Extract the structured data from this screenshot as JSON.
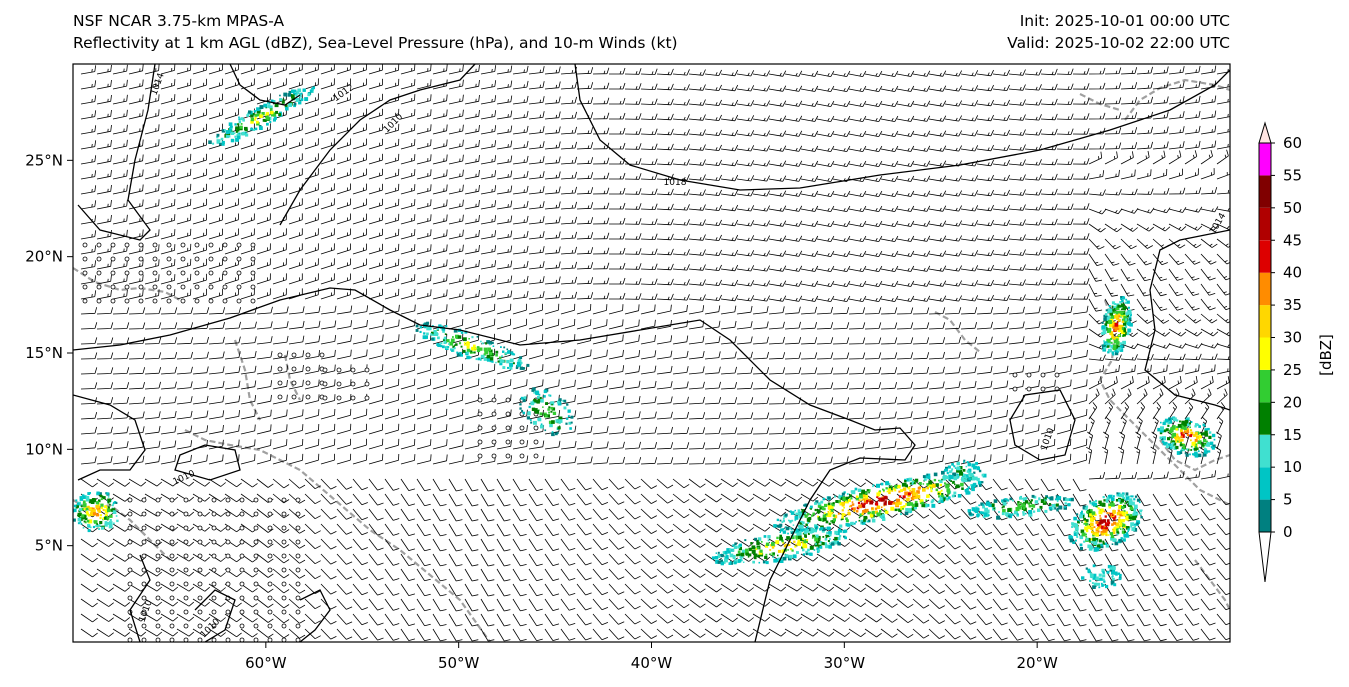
{
  "header": {
    "model": "NSF NCAR 3.75-km MPAS-A",
    "fields": "Reflectivity at 1 km AGL (dBZ), Sea-Level Pressure (hPa), and 10-m Winds (kt)",
    "init": "Init: 2025-10-01 00:00 UTC",
    "valid": "Valid: 2025-10-02 22:00 UTC"
  },
  "axes": {
    "lon_range": [
      -70,
      -10
    ],
    "lat_range": [
      0,
      30
    ],
    "lon_ticks": [
      "60°W",
      "50°W",
      "40°W",
      "30°W",
      "20°W"
    ],
    "lon_tick_values": [
      -60,
      -50,
      -40,
      -30,
      -20
    ],
    "lat_ticks": [
      "5°N",
      "10°N",
      "15°N",
      "20°N",
      "25°N"
    ],
    "lat_tick_values": [
      5,
      10,
      15,
      20,
      25
    ]
  },
  "colorbar": {
    "label": "[dBZ]",
    "ticks": [
      "0",
      "5",
      "10",
      "15",
      "20",
      "25",
      "30",
      "35",
      "40",
      "45",
      "50",
      "55",
      "60"
    ],
    "colors": [
      "#008080",
      "#00c5c5",
      "#40e0d0",
      "#008000",
      "#32cd32",
      "#ffff00",
      "#ffd700",
      "#ff8c00",
      "#dd0000",
      "#b00000",
      "#800000",
      "#ff00ff",
      "#ffe4e1"
    ]
  },
  "isobars": {
    "labels": [
      "1014",
      "1010",
      "1012",
      "1010",
      "1014",
      "1010",
      "1010",
      "1010"
    ]
  },
  "style": {
    "isobar_color": "#000000",
    "coast_color": "#a0a0a0",
    "barb_color": "#000000"
  }
}
